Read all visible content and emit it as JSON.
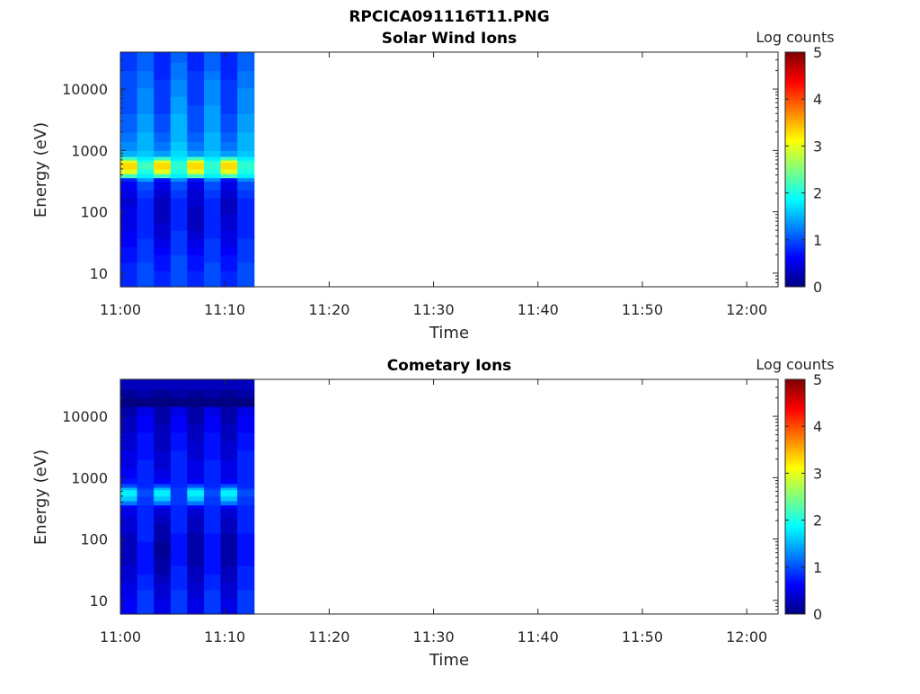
{
  "figure_title": "RPCICA091116T11.PNG",
  "chart_data": [
    {
      "type": "heatmap",
      "title": "Solar Wind Ions",
      "xlabel": "Time",
      "ylabel": "Energy (eV)",
      "x_ticks": [
        "11:00",
        "11:10",
        "11:20",
        "11:30",
        "11:40",
        "11:50",
        "12:00"
      ],
      "x_range_minutes": [
        0,
        63
      ],
      "y_scale": "log",
      "y_ticks": [
        {
          "value": 10,
          "label": "10"
        },
        {
          "value": 100,
          "label": "100"
        },
        {
          "value": 1000,
          "label": "1000"
        },
        {
          "value": 10000,
          "label": "10000"
        }
      ],
      "y_range": [
        6,
        40000
      ],
      "colorbar": {
        "title": "Log counts",
        "range": [
          0,
          5
        ],
        "ticks": [
          "0",
          "1",
          "2",
          "3",
          "4",
          "5"
        ],
        "colormap": "jet"
      },
      "energy_edges_eV": [
        6,
        8,
        11,
        15,
        20,
        27,
        37,
        50,
        68,
        92,
        125,
        170,
        230,
        315,
        360,
        420,
        500,
        560,
        640,
        700,
        800,
        1000,
        1400,
        2000,
        2800,
        4000,
        5500,
        7600,
        10500,
        14500,
        20000,
        27500,
        40000
      ],
      "time_bins_minutes": [
        0,
        1.6,
        3.2,
        4.8,
        6.4,
        8.0,
        9.6,
        11.2,
        12.8
      ],
      "values_log_counts": [
        [
          0.8,
          0.8,
          0.8,
          0.7,
          0.7,
          0.6,
          0.6,
          0.5,
          0.5,
          0.5,
          0.4,
          0.5,
          0.6,
          0.8,
          2.2,
          3.0,
          3.3,
          3.3,
          3.0,
          2.2,
          1.5,
          1.3,
          1.2,
          1.1,
          1.1,
          1.0,
          1.0,
          1.0,
          1.0,
          1.0,
          0.9,
          0.9
        ],
        [
          1.0,
          1.0,
          1.0,
          0.9,
          0.9,
          0.9,
          0.8,
          0.8,
          0.8,
          0.8,
          0.8,
          0.9,
          1.0,
          1.4,
          1.8,
          2.0,
          2.2,
          2.2,
          2.0,
          1.8,
          1.6,
          1.5,
          1.5,
          1.4,
          1.4,
          1.3,
          1.3,
          1.3,
          1.2,
          1.2,
          1.1,
          1.1
        ],
        [
          0.8,
          0.8,
          0.7,
          0.7,
          0.6,
          0.5,
          0.4,
          0.4,
          0.3,
          0.3,
          0.3,
          0.4,
          0.5,
          0.7,
          2.2,
          3.0,
          3.3,
          3.3,
          3.0,
          2.2,
          1.4,
          1.2,
          1.1,
          1.0,
          1.0,
          0.9,
          0.9,
          0.9,
          0.9,
          0.8,
          0.8,
          0.8
        ],
        [
          1.0,
          1.0,
          1.0,
          1.0,
          0.9,
          0.9,
          0.9,
          0.8,
          0.8,
          0.8,
          0.8,
          0.9,
          1.0,
          1.3,
          1.8,
          2.0,
          2.1,
          2.1,
          2.0,
          1.8,
          1.7,
          1.6,
          1.5,
          1.5,
          1.5,
          1.4,
          1.4,
          1.3,
          1.3,
          1.2,
          1.2,
          1.1
        ],
        [
          0.8,
          0.8,
          0.7,
          0.7,
          0.6,
          0.5,
          0.4,
          0.3,
          0.3,
          0.3,
          0.4,
          0.4,
          0.5,
          0.7,
          2.2,
          3.0,
          3.3,
          3.3,
          3.0,
          2.2,
          1.4,
          1.2,
          1.1,
          1.0,
          1.0,
          1.0,
          0.9,
          0.9,
          0.9,
          0.9,
          0.8,
          0.8
        ],
        [
          1.0,
          1.0,
          1.0,
          0.9,
          0.9,
          0.9,
          0.8,
          0.8,
          0.8,
          0.8,
          0.8,
          0.9,
          1.0,
          1.3,
          1.8,
          2.0,
          2.1,
          2.1,
          2.0,
          1.8,
          1.6,
          1.5,
          1.5,
          1.4,
          1.4,
          1.4,
          1.3,
          1.3,
          1.3,
          1.2,
          1.1,
          1.1
        ],
        [
          0.8,
          0.8,
          0.7,
          0.7,
          0.6,
          0.5,
          0.5,
          0.4,
          0.4,
          0.3,
          0.3,
          0.4,
          0.5,
          0.7,
          2.2,
          3.0,
          3.3,
          3.3,
          3.0,
          2.2,
          1.4,
          1.2,
          1.1,
          1.0,
          1.0,
          0.9,
          0.9,
          0.9,
          0.9,
          0.8,
          0.8,
          0.8
        ],
        [
          1.0,
          1.0,
          1.0,
          0.9,
          0.9,
          0.9,
          0.8,
          0.8,
          0.8,
          0.8,
          0.8,
          0.9,
          1.0,
          1.3,
          1.8,
          2.0,
          2.1,
          2.1,
          2.0,
          1.8,
          1.6,
          1.5,
          1.5,
          1.4,
          1.4,
          1.3,
          1.3,
          1.3,
          1.2,
          1.2,
          1.1,
          1.1
        ]
      ]
    },
    {
      "type": "heatmap",
      "title": "Cometary Ions",
      "xlabel": "Time",
      "ylabel": "Energy (eV)",
      "x_ticks": [
        "11:00",
        "11:10",
        "11:20",
        "11:30",
        "11:40",
        "11:50",
        "12:00"
      ],
      "x_range_minutes": [
        0,
        63
      ],
      "y_scale": "log",
      "y_ticks": [
        {
          "value": 10,
          "label": "10"
        },
        {
          "value": 100,
          "label": "100"
        },
        {
          "value": 1000,
          "label": "1000"
        },
        {
          "value": 10000,
          "label": "10000"
        }
      ],
      "y_range": [
        6,
        40000
      ],
      "colorbar": {
        "title": "Log counts",
        "range": [
          0,
          5
        ],
        "ticks": [
          "0",
          "1",
          "2",
          "3",
          "4",
          "5"
        ],
        "colormap": "jet"
      },
      "energy_edges_eV": [
        6,
        8,
        11,
        15,
        20,
        27,
        37,
        50,
        68,
        92,
        125,
        170,
        230,
        315,
        360,
        420,
        500,
        560,
        640,
        700,
        800,
        1000,
        1400,
        2000,
        2800,
        4000,
        5500,
        7600,
        10500,
        14500,
        20000,
        27500,
        40000
      ],
      "time_bins_minutes": [
        0,
        1.6,
        3.2,
        4.8,
        6.4,
        8.0,
        9.6,
        11.2,
        12.8
      ],
      "values_log_counts": [
        [
          0.6,
          0.6,
          0.5,
          0.5,
          0.4,
          0.4,
          0.3,
          0.3,
          0.3,
          0.3,
          0.4,
          0.4,
          0.5,
          0.6,
          1.2,
          1.6,
          1.8,
          1.8,
          1.5,
          1.0,
          0.7,
          0.6,
          0.5,
          0.5,
          0.4,
          0.4,
          0.3,
          0.3,
          0.2,
          0.0,
          0.1,
          0.3
        ],
        [
          0.9,
          0.9,
          0.9,
          0.8,
          0.8,
          0.7,
          0.7,
          0.7,
          0.7,
          0.8,
          0.8,
          0.8,
          0.8,
          0.8,
          0.9,
          0.9,
          1.0,
          1.0,
          0.9,
          0.8,
          0.8,
          0.8,
          0.8,
          0.7,
          0.7,
          0.7,
          0.6,
          0.6,
          0.5,
          0.0,
          0.2,
          0.3
        ],
        [
          0.5,
          0.5,
          0.4,
          0.4,
          0.3,
          0.2,
          0.2,
          0.1,
          0.1,
          0.2,
          0.2,
          0.3,
          0.4,
          0.6,
          1.2,
          1.6,
          1.8,
          1.8,
          1.5,
          1.0,
          0.6,
          0.5,
          0.4,
          0.4,
          0.3,
          0.3,
          0.3,
          0.2,
          0.2,
          0.0,
          0.1,
          0.3
        ],
        [
          0.9,
          0.9,
          0.9,
          0.8,
          0.8,
          0.8,
          0.7,
          0.7,
          0.7,
          0.7,
          0.8,
          0.8,
          0.8,
          0.8,
          0.9,
          0.9,
          0.9,
          0.9,
          0.9,
          0.8,
          0.8,
          0.8,
          0.8,
          0.8,
          0.7,
          0.7,
          0.6,
          0.6,
          0.5,
          0.0,
          0.2,
          0.3
        ],
        [
          0.5,
          0.5,
          0.4,
          0.4,
          0.3,
          0.3,
          0.2,
          0.2,
          0.2,
          0.2,
          0.3,
          0.3,
          0.4,
          0.6,
          1.2,
          1.6,
          1.8,
          1.8,
          1.5,
          1.0,
          0.6,
          0.5,
          0.5,
          0.4,
          0.4,
          0.3,
          0.3,
          0.2,
          0.2,
          0.0,
          0.1,
          0.3
        ],
        [
          0.9,
          0.9,
          0.9,
          0.8,
          0.8,
          0.7,
          0.7,
          0.7,
          0.7,
          0.7,
          0.8,
          0.8,
          0.8,
          0.8,
          0.9,
          0.9,
          1.0,
          1.0,
          0.9,
          0.8,
          0.8,
          0.8,
          0.8,
          0.7,
          0.7,
          0.7,
          0.6,
          0.6,
          0.5,
          0.0,
          0.2,
          0.3
        ],
        [
          0.5,
          0.5,
          0.4,
          0.4,
          0.3,
          0.3,
          0.2,
          0.2,
          0.2,
          0.2,
          0.3,
          0.3,
          0.4,
          0.6,
          1.2,
          1.6,
          1.8,
          1.8,
          1.5,
          1.0,
          0.6,
          0.5,
          0.5,
          0.4,
          0.4,
          0.3,
          0.3,
          0.2,
          0.2,
          0.0,
          0.1,
          0.3
        ],
        [
          0.9,
          0.9,
          0.9,
          0.8,
          0.8,
          0.8,
          0.7,
          0.7,
          0.7,
          0.7,
          0.8,
          0.8,
          0.8,
          0.8,
          0.9,
          0.9,
          1.0,
          1.0,
          0.9,
          0.8,
          0.8,
          0.8,
          0.8,
          0.8,
          0.7,
          0.7,
          0.6,
          0.6,
          0.5,
          0.0,
          0.2,
          0.3
        ]
      ]
    }
  ]
}
